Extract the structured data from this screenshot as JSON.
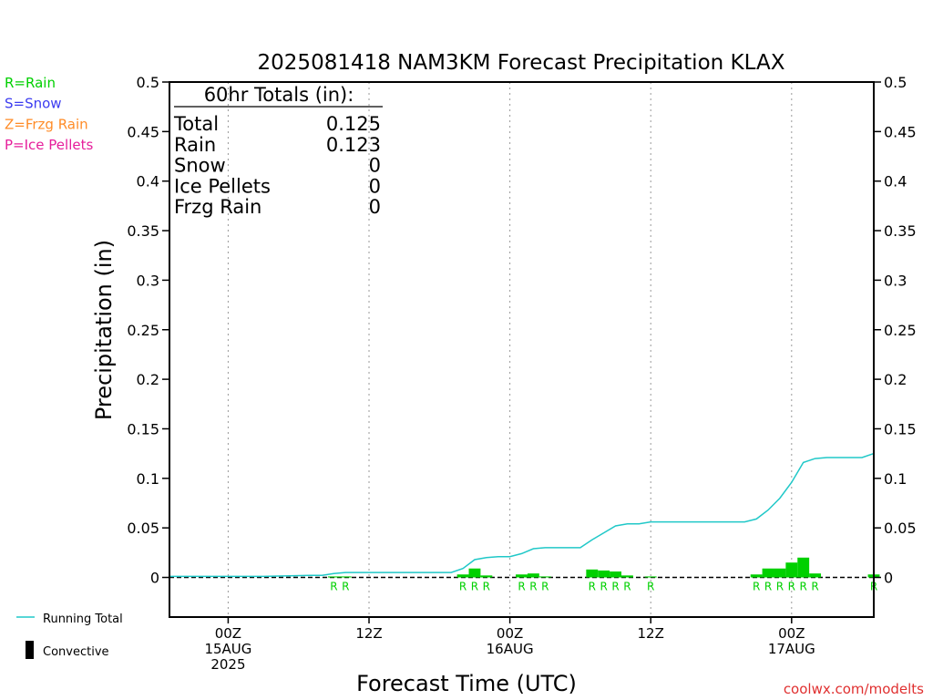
{
  "chart_data": {
    "type": "bar",
    "title": "2025081418 NAM3KM Forecast Precipitation KLAX",
    "xlabel": "Forecast Time (UTC)",
    "ylabel": "Precipitation (in)",
    "ylim": [
      -0.04,
      0.5
    ],
    "y_ticks": [
      0,
      0.05,
      0.1,
      0.15,
      0.2,
      0.25,
      0.3,
      0.35,
      0.4,
      0.45,
      0.5
    ],
    "y_tick_labels": [
      "0",
      "0.05",
      "0.1",
      "0.15",
      "0.2",
      "0.25",
      "0.3",
      "0.35",
      "0.4",
      "0.45",
      "0.5"
    ],
    "xlim_hours": [
      -5,
      55
    ],
    "x_ticks": [
      {
        "hour": 0,
        "lines": [
          "00Z",
          "15AUG",
          "2025"
        ]
      },
      {
        "hour": 12,
        "lines": [
          "12Z"
        ]
      },
      {
        "hour": 24,
        "lines": [
          "00Z",
          "16AUG"
        ]
      },
      {
        "hour": 36,
        "lines": [
          "12Z"
        ]
      },
      {
        "hour": 48,
        "lines": [
          "00Z",
          "17AUG"
        ]
      }
    ],
    "grid": "vertical dotted at 00Z and 12Z",
    "precip_type_legend": [
      {
        "label": "R=Rain",
        "color": "#00d000"
      },
      {
        "label": "S=Snow",
        "color": "#3c3cf0"
      },
      {
        "label": "Z=Frzg Rain",
        "color": "#ff8c28"
      },
      {
        "label": "P=Ice Pellets",
        "color": "#e61e9b"
      }
    ],
    "series_legend": [
      {
        "label": "Running Total",
        "color": "#20c8c8"
      },
      {
        "label": "Convective",
        "color": "#000000"
      }
    ],
    "totals": {
      "header": "60hr Totals (in):",
      "rows": [
        {
          "label": "Total",
          "value": "0.125"
        },
        {
          "label": "Rain",
          "value": "0.123"
        },
        {
          "label": "Snow",
          "value": "0"
        },
        {
          "label": "Ice Pellets",
          "value": "0"
        },
        {
          "label": "Frzg Rain",
          "value": "0"
        }
      ]
    },
    "hourly_precip": [
      {
        "hour": 9,
        "value": 0.001,
        "type": "R"
      },
      {
        "hour": 10,
        "value": 0.001,
        "type": "R"
      },
      {
        "hour": 20,
        "value": 0.003,
        "type": "R"
      },
      {
        "hour": 21,
        "value": 0.009,
        "type": "R"
      },
      {
        "hour": 22,
        "value": 0.002,
        "type": "R"
      },
      {
        "hour": 25,
        "value": 0.003,
        "type": "R"
      },
      {
        "hour": 26,
        "value": 0.004,
        "type": "R"
      },
      {
        "hour": 27,
        "value": 0.001,
        "type": "R"
      },
      {
        "hour": 31,
        "value": 0.008,
        "type": "R"
      },
      {
        "hour": 32,
        "value": 0.007,
        "type": "R"
      },
      {
        "hour": 33,
        "value": 0.006,
        "type": "R"
      },
      {
        "hour": 34,
        "value": 0.002,
        "type": "R"
      },
      {
        "hour": 36,
        "value": 0.001,
        "type": "R"
      },
      {
        "hour": 45,
        "value": 0.003,
        "type": "R"
      },
      {
        "hour": 46,
        "value": 0.009,
        "type": "R"
      },
      {
        "hour": 47,
        "value": 0.009,
        "type": "R"
      },
      {
        "hour": 48,
        "value": 0.015,
        "type": "R"
      },
      {
        "hour": 49,
        "value": 0.02,
        "type": "R"
      },
      {
        "hour": 50,
        "value": 0.004,
        "type": "R"
      },
      {
        "hour": 55,
        "value": 0.003,
        "type": "R"
      }
    ],
    "running_total": [
      {
        "hour": -5,
        "value": 0.001
      },
      {
        "hour": 0,
        "value": 0.001
      },
      {
        "hour": 3,
        "value": 0.001
      },
      {
        "hour": 7,
        "value": 0.002
      },
      {
        "hour": 8,
        "value": 0.002
      },
      {
        "hour": 9,
        "value": 0.004
      },
      {
        "hour": 10,
        "value": 0.005
      },
      {
        "hour": 19,
        "value": 0.005
      },
      {
        "hour": 20,
        "value": 0.009
      },
      {
        "hour": 21,
        "value": 0.018
      },
      {
        "hour": 22,
        "value": 0.02
      },
      {
        "hour": 23,
        "value": 0.021
      },
      {
        "hour": 24,
        "value": 0.021
      },
      {
        "hour": 25,
        "value": 0.024
      },
      {
        "hour": 26,
        "value": 0.029
      },
      {
        "hour": 27,
        "value": 0.03
      },
      {
        "hour": 30,
        "value": 0.03
      },
      {
        "hour": 31,
        "value": 0.038
      },
      {
        "hour": 32,
        "value": 0.045
      },
      {
        "hour": 33,
        "value": 0.052
      },
      {
        "hour": 34,
        "value": 0.054
      },
      {
        "hour": 35,
        "value": 0.054
      },
      {
        "hour": 36,
        "value": 0.056
      },
      {
        "hour": 44,
        "value": 0.056
      },
      {
        "hour": 45,
        "value": 0.059
      },
      {
        "hour": 46,
        "value": 0.068
      },
      {
        "hour": 47,
        "value": 0.08
      },
      {
        "hour": 48,
        "value": 0.096
      },
      {
        "hour": 49,
        "value": 0.116
      },
      {
        "hour": 50,
        "value": 0.12
      },
      {
        "hour": 51,
        "value": 0.121
      },
      {
        "hour": 54,
        "value": 0.121
      },
      {
        "hour": 55,
        "value": 0.125
      }
    ],
    "credit": "coolwx.com/modelts"
  }
}
